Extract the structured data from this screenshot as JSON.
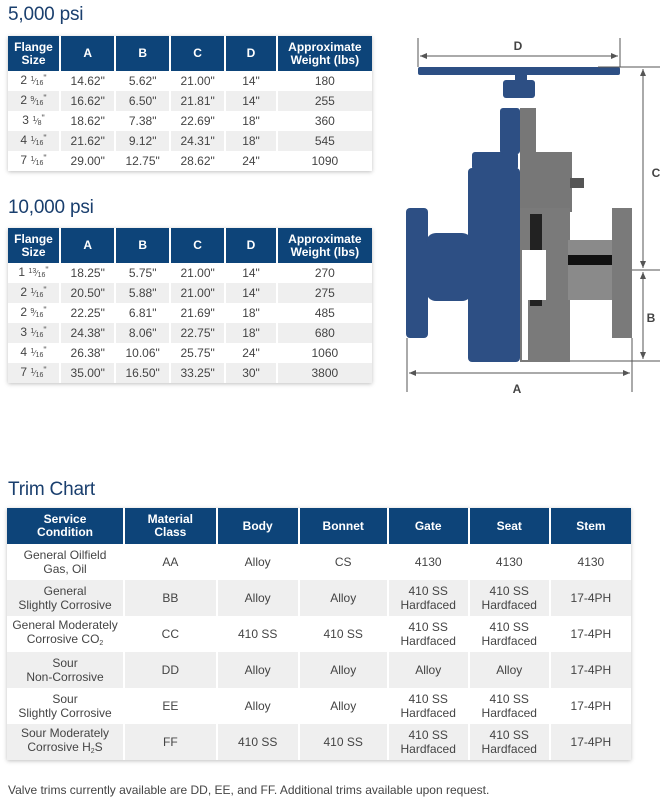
{
  "colors": {
    "header": "#0d4479",
    "alt_row": "#efefef",
    "title": "#1a3f6e",
    "valve_blue": "#2d4f84",
    "valve_gray": "#7a7a7a"
  },
  "table_5000": {
    "title": "5,000 psi",
    "headers": [
      "Flange Size",
      "A",
      "B",
      "C",
      "D",
      "Approximate Weight (lbs)"
    ],
    "rows": [
      {
        "size": {
          "whole": "2",
          "num": "1",
          "den": "16"
        },
        "a": "14.62\"",
        "b": "5.62\"",
        "c": "21.00\"",
        "d": "14\"",
        "weight": "180"
      },
      {
        "size": {
          "whole": "2",
          "num": "9",
          "den": "16"
        },
        "a": "16.62\"",
        "b": "6.50\"",
        "c": "21.81\"",
        "d": "14\"",
        "weight": "255"
      },
      {
        "size": {
          "whole": "3",
          "num": "1",
          "den": "8"
        },
        "a": "18.62\"",
        "b": "7.38\"",
        "c": "22.69\"",
        "d": "18\"",
        "weight": "360"
      },
      {
        "size": {
          "whole": "4",
          "num": "1",
          "den": "16"
        },
        "a": "21.62\"",
        "b": "9.12\"",
        "c": "24.31\"",
        "d": "18\"",
        "weight": "545"
      },
      {
        "size": {
          "whole": "7",
          "num": "1",
          "den": "16"
        },
        "a": "29.00\"",
        "b": "12.75\"",
        "c": "28.62\"",
        "d": "24\"",
        "weight": "1090"
      }
    ]
  },
  "table_10000": {
    "title": "10,000 psi",
    "headers": [
      "Flange Size",
      "A",
      "B",
      "C",
      "D",
      "Approximate Weight (lbs)"
    ],
    "rows": [
      {
        "size": {
          "whole": "1",
          "num": "13",
          "den": "16"
        },
        "a": "18.25\"",
        "b": "5.75\"",
        "c": "21.00\"",
        "d": "14\"",
        "weight": "270"
      },
      {
        "size": {
          "whole": "2",
          "num": "1",
          "den": "16"
        },
        "a": "20.50\"",
        "b": "5.88\"",
        "c": "21.00\"",
        "d": "14\"",
        "weight": "275"
      },
      {
        "size": {
          "whole": "2",
          "num": "9",
          "den": "16"
        },
        "a": "22.25\"",
        "b": "6.81\"",
        "c": "21.69\"",
        "d": "18\"",
        "weight": "485"
      },
      {
        "size": {
          "whole": "3",
          "num": "1",
          "den": "16"
        },
        "a": "24.38\"",
        "b": "8.06\"",
        "c": "22.75\"",
        "d": "18\"",
        "weight": "680"
      },
      {
        "size": {
          "whole": "4",
          "num": "1",
          "den": "16"
        },
        "a": "26.38\"",
        "b": "10.06\"",
        "c": "25.75\"",
        "d": "24\"",
        "weight": "1060"
      },
      {
        "size": {
          "whole": "7",
          "num": "1",
          "den": "16"
        },
        "a": "35.00\"",
        "b": "16.50\"",
        "c": "33.25\"",
        "d": "30\"",
        "weight": "3800"
      }
    ]
  },
  "diagram": {
    "labels": {
      "d": "D",
      "c": "C",
      "b": "B",
      "a": "A"
    }
  },
  "trim_chart": {
    "title": "Trim Chart",
    "headers": [
      "Service Condition",
      "Material Class",
      "Body",
      "Bonnet",
      "Gate",
      "Seat",
      "Stem"
    ],
    "rows": [
      {
        "service": [
          [
            "General Oilfield"
          ],
          [
            "Gas, Oil"
          ]
        ],
        "class": "AA",
        "body": "Alloy",
        "bonnet": "CS",
        "gate": [
          "4130"
        ],
        "seat": [
          "4130"
        ],
        "stem": "4130"
      },
      {
        "service": [
          [
            "General"
          ],
          [
            "Slightly Corrosive"
          ]
        ],
        "class": "BB",
        "body": "Alloy",
        "bonnet": "Alloy",
        "gate": [
          "410 SS",
          "Hardfaced"
        ],
        "seat": [
          "410 SS",
          "Hardfaced"
        ],
        "stem": "17-4PH"
      },
      {
        "service": [
          [
            "General Moderately"
          ],
          [
            "Corrosive CO",
            "2",
            ""
          ]
        ],
        "class": "CC",
        "body": "410 SS",
        "bonnet": "410 SS",
        "gate": [
          "410 SS",
          "Hardfaced"
        ],
        "seat": [
          "410 SS",
          "Hardfaced"
        ],
        "stem": "17-4PH"
      },
      {
        "service": [
          [
            "Sour"
          ],
          [
            "Non-Corrosive"
          ]
        ],
        "class": "DD",
        "body": "Alloy",
        "bonnet": "Alloy",
        "gate": [
          "Alloy"
        ],
        "seat": [
          "Alloy"
        ],
        "stem": "17-4PH"
      },
      {
        "service": [
          [
            "Sour"
          ],
          [
            "Slightly Corrosive"
          ]
        ],
        "class": "EE",
        "body": "Alloy",
        "bonnet": "Alloy",
        "gate": [
          "410 SS",
          "Hardfaced"
        ],
        "seat": [
          "410 SS",
          "Hardfaced"
        ],
        "stem": "17-4PH"
      },
      {
        "service": [
          [
            "Sour Moderately"
          ],
          [
            "Corrosive H",
            "2",
            "S"
          ]
        ],
        "class": "FF",
        "body": "410 SS",
        "bonnet": "410 SS",
        "gate": [
          "410 SS",
          "Hardfaced"
        ],
        "seat": [
          "410 SS",
          "Hardfaced"
        ],
        "stem": "17-4PH"
      }
    ],
    "footnote": "Valve trims currently available are DD, EE, and FF. Additional trims available upon request."
  }
}
